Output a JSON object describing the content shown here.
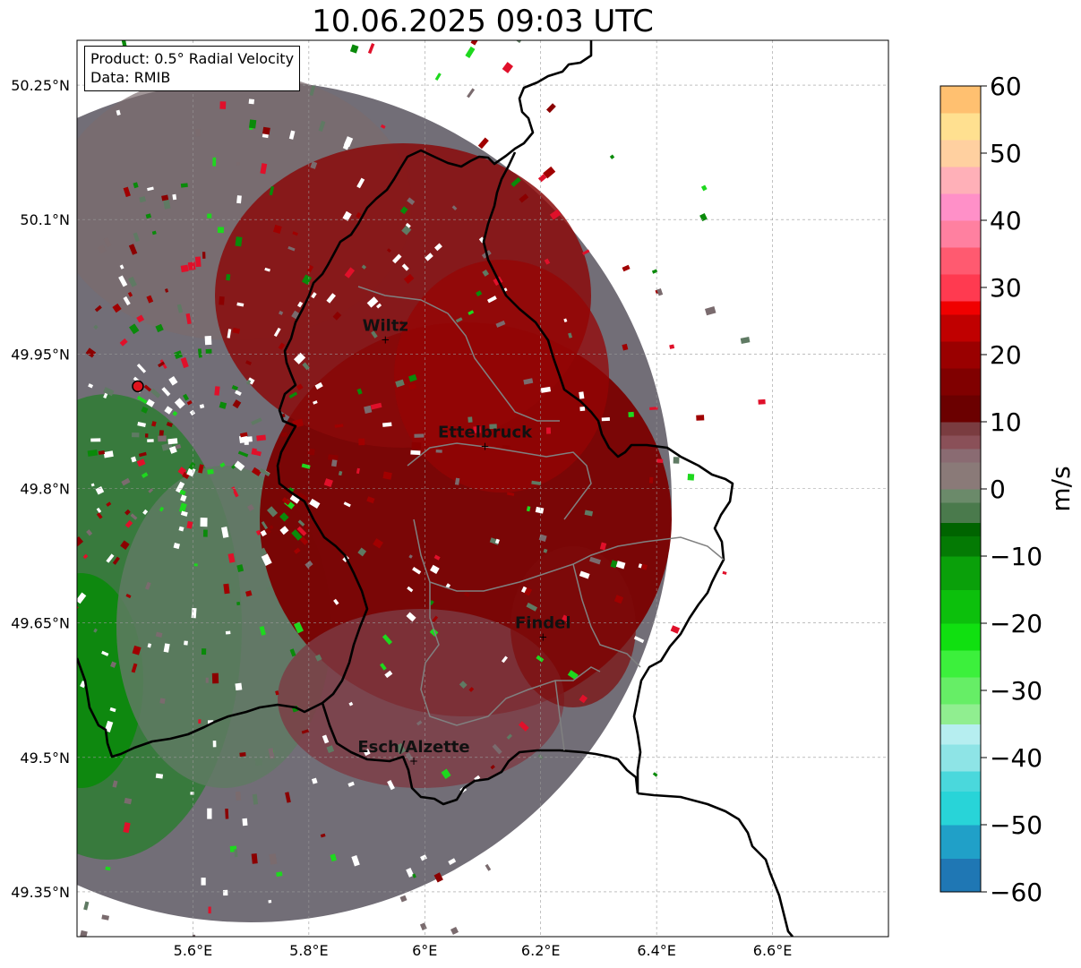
{
  "title": "10.06.2025 09:03 UTC",
  "info": {
    "product": "Product: 0.5° Radial Velocity",
    "data_source": "Data: RMIB"
  },
  "map": {
    "lon_range": [
      5.4,
      6.8
    ],
    "lat_range": [
      49.3,
      50.3
    ],
    "lon_ticks": [
      "5.6°E",
      "5.8°E",
      "6°E",
      "6.2°E",
      "6.4°E",
      "6.6°E"
    ],
    "lat_ticks": [
      "50.25°N",
      "50.1°N",
      "49.95°N",
      "49.8°N",
      "49.65°N",
      "49.5°N",
      "49.35°N"
    ],
    "radar_site": {
      "lon": 5.505,
      "lat": 49.914
    },
    "cities": [
      {
        "name": "Wiltz",
        "lon": 5.932,
        "lat": 49.966
      },
      {
        "name": "Ettelbruck",
        "lon": 6.104,
        "lat": 49.847
      },
      {
        "name": "Findel",
        "lon": 6.204,
        "lat": 49.634
      },
      {
        "name": "Esch/Alzette",
        "lon": 5.981,
        "lat": 49.496
      }
    ],
    "grid": true
  },
  "colorbar": {
    "label": "m/s",
    "min": -60,
    "max": 60,
    "ticks": [
      "60",
      "50",
      "40",
      "30",
      "20",
      "10",
      "0",
      "−10",
      "−20",
      "−30",
      "−40",
      "−50",
      "−60"
    ]
  }
}
